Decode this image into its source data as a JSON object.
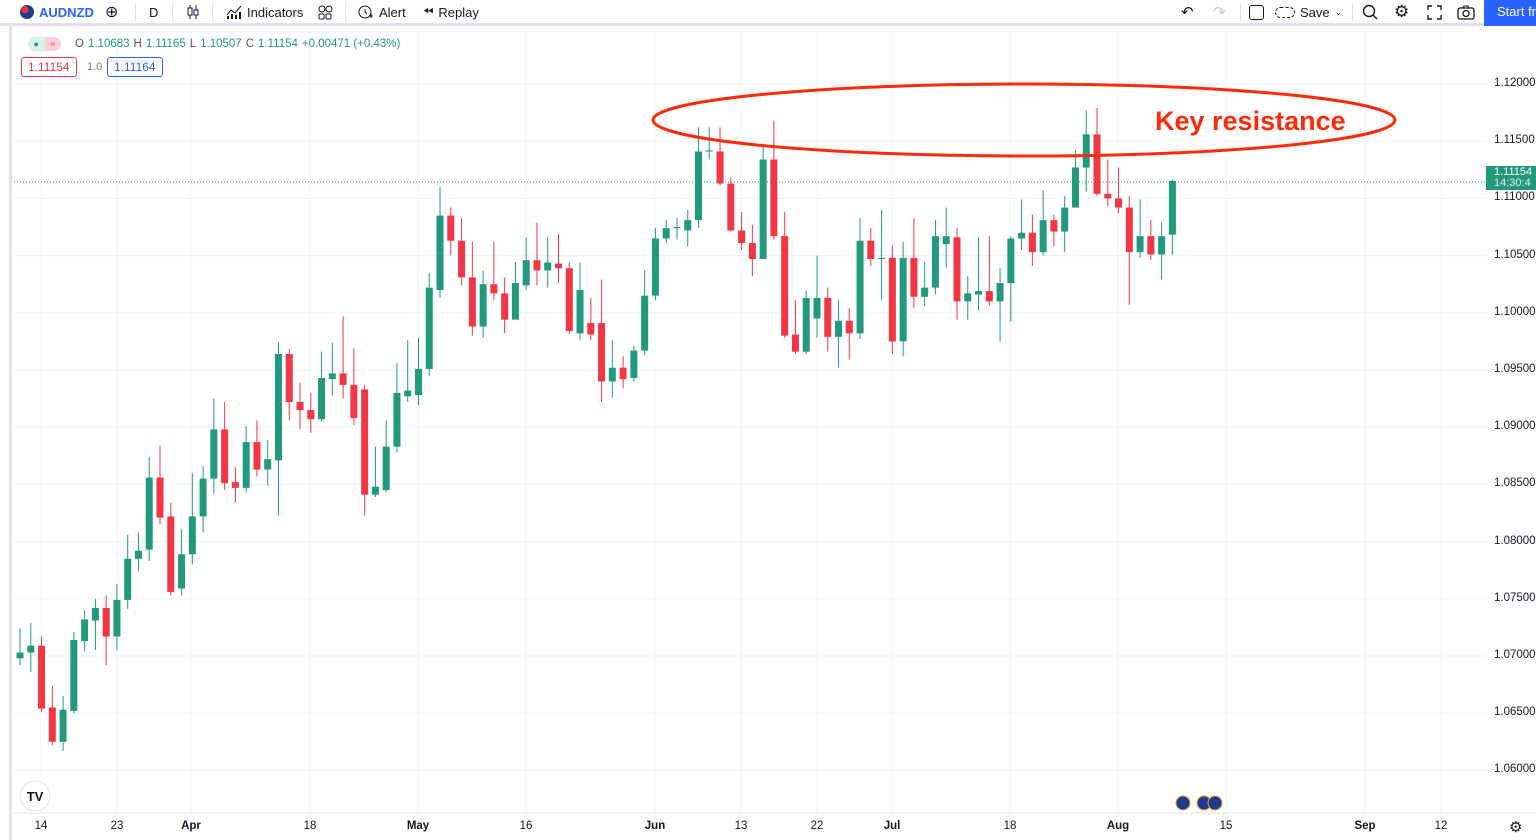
{
  "toolbar": {
    "symbol": "AUDNZD",
    "interval": "D",
    "indicators_label": "Indicators",
    "alert_label": "Alert",
    "replay_label": "Replay",
    "save_label": "Save",
    "start_label": "Start fr"
  },
  "legend": {
    "o_label": "O",
    "o": "1.10683",
    "h_label": "H",
    "h": "1.11165",
    "l_label": "L",
    "l": "1.10507",
    "c_label": "C",
    "c": "1.11154",
    "change": "+0.00471 (+0.43%)",
    "sell_price": "1.11154",
    "spread": "1.0",
    "buy_price": "1.11164"
  },
  "price_tag": {
    "price": "1.11154",
    "countdown": "14:30:4"
  },
  "annotation": {
    "text": "Key resistance",
    "color": "#ff2a0a"
  },
  "colors": {
    "up": "#22997c",
    "down": "#f23645",
    "accent": "#2962ff"
  },
  "chart_data": {
    "type": "candlestick",
    "symbol": "AUDNZD",
    "interval": "D",
    "y_ticks": [
      "1.12000",
      "1.11500",
      "1.11000",
      "1.10500",
      "1.10000",
      "1.09500",
      "1.09000",
      "1.08500",
      "1.08000",
      "1.07500",
      "1.07000",
      "1.06500",
      "1.06000"
    ],
    "ylim": [
      1.0575,
      1.1245
    ],
    "x_ticks": [
      "14",
      "23",
      "Apr",
      "18",
      "May",
      "16",
      "Jun",
      "13",
      "22",
      "Jul",
      "18",
      "Aug",
      "15",
      "Sep",
      "12"
    ],
    "grid": true,
    "ohlc": [
      [
        1.0698,
        1.0724,
        1.0692,
        1.0703
      ],
      [
        1.0703,
        1.0729,
        1.0686,
        1.0709
      ],
      [
        1.0709,
        1.0717,
        1.0651,
        1.0654
      ],
      [
        1.0655,
        1.0674,
        1.0622,
        1.0625
      ],
      [
        1.0625,
        1.0665,
        1.0617,
        1.0653
      ],
      [
        1.0652,
        1.0721,
        1.065,
        1.0714
      ],
      [
        1.0713,
        1.074,
        1.0704,
        1.0732
      ],
      [
        1.0731,
        1.075,
        1.0705,
        1.0742
      ],
      [
        1.0742,
        1.0753,
        1.0692,
        1.0717
      ],
      [
        1.0717,
        1.0763,
        1.0705,
        1.0749
      ],
      [
        1.0749,
        1.0806,
        1.0741,
        1.0785
      ],
      [
        1.0785,
        1.0808,
        1.0774,
        1.0792
      ],
      [
        1.0793,
        1.0874,
        1.0783,
        1.0856
      ],
      [
        1.0856,
        1.0884,
        1.0815,
        1.0821
      ],
      [
        1.0822,
        1.0834,
        1.0753,
        1.0756
      ],
      [
        1.0759,
        1.0811,
        1.0753,
        1.0789
      ],
      [
        1.0789,
        1.086,
        1.078,
        1.0822
      ],
      [
        1.0822,
        1.0866,
        1.0808,
        1.0855
      ],
      [
        1.0855,
        1.0925,
        1.0842,
        1.0898
      ],
      [
        1.0898,
        1.0922,
        1.0845,
        1.0851
      ],
      [
        1.0852,
        1.0865,
        1.0834,
        1.0847
      ],
      [
        1.0847,
        1.0901,
        1.0843,
        1.0887
      ],
      [
        1.0887,
        1.0906,
        1.0857,
        1.0863
      ],
      [
        1.0863,
        1.0889,
        1.0849,
        1.0872
      ],
      [
        1.0871,
        1.0974,
        1.0823,
        1.0964
      ],
      [
        1.0964,
        1.0968,
        1.0906,
        1.0922
      ],
      [
        1.0922,
        1.0939,
        1.0898,
        1.0915
      ],
      [
        1.0915,
        1.093,
        1.0895,
        1.0907
      ],
      [
        1.0907,
        1.0966,
        1.0905,
        1.0943
      ],
      [
        1.0942,
        1.0974,
        1.0928,
        1.0947
      ],
      [
        1.0947,
        1.0997,
        1.0925,
        1.0937
      ],
      [
        1.0937,
        1.0969,
        1.0902,
        1.0908
      ],
      [
        1.0933,
        1.0937,
        1.0823,
        1.0841
      ],
      [
        1.0841,
        1.0883,
        1.0839,
        1.0848
      ],
      [
        1.0845,
        1.0906,
        1.0843,
        1.0883
      ],
      [
        1.0883,
        1.0956,
        1.0878,
        1.093
      ],
      [
        1.0927,
        1.0976,
        1.0922,
        1.0932
      ],
      [
        1.0928,
        1.0978,
        1.0919,
        1.0951
      ],
      [
        1.0951,
        1.1035,
        1.0945,
        1.1022
      ],
      [
        1.102,
        1.111,
        1.1013,
        1.1085
      ],
      [
        1.1085,
        1.1092,
        1.105,
        1.1063
      ],
      [
        1.1063,
        1.1083,
        1.1024,
        1.1031
      ],
      [
        1.1031,
        1.1062,
        1.098,
        1.0988
      ],
      [
        1.0988,
        1.1037,
        1.0978,
        1.1025
      ],
      [
        1.1025,
        1.1062,
        1.1011,
        1.1017
      ],
      [
        1.1017,
        1.1031,
        1.0982,
        1.0994
      ],
      [
        1.0994,
        1.1044,
        1.0994,
        1.1026
      ],
      [
        1.1024,
        1.1066,
        1.102,
        1.1046
      ],
      [
        1.1046,
        1.1079,
        1.1024,
        1.1037
      ],
      [
        1.1037,
        1.1066,
        1.1022,
        1.1044
      ],
      [
        1.1043,
        1.1069,
        1.1026,
        1.1039
      ],
      [
        1.1039,
        1.1044,
        1.0981,
        1.0984
      ],
      [
        1.0982,
        1.1044,
        1.0976,
        1.102
      ],
      [
        1.0991,
        1.1013,
        1.0976,
        1.0981
      ],
      [
        1.0991,
        1.1029,
        1.0922,
        1.094
      ],
      [
        1.094,
        1.0976,
        1.0926,
        1.0952
      ],
      [
        1.0952,
        1.0962,
        1.0934,
        1.0942
      ],
      [
        1.0943,
        1.0971,
        1.094,
        1.0967
      ],
      [
        1.0967,
        1.1037,
        1.0963,
        1.1015
      ],
      [
        1.1015,
        1.1074,
        1.1011,
        1.1065
      ],
      [
        1.1065,
        1.1081,
        1.1061,
        1.1074
      ],
      [
        1.1074,
        1.1083,
        1.1064,
        1.1075
      ],
      [
        1.1072,
        1.109,
        1.1058,
        1.1081
      ],
      [
        1.1081,
        1.1162,
        1.1074,
        1.1141
      ],
      [
        1.1141,
        1.1162,
        1.1134,
        1.1142
      ],
      [
        1.1141,
        1.1162,
        1.1111,
        1.1113
      ],
      [
        1.1113,
        1.1118,
        1.1071,
        1.1072
      ],
      [
        1.1072,
        1.1088,
        1.1055,
        1.1061
      ],
      [
        1.1061,
        1.1077,
        1.1032,
        1.1047
      ],
      [
        1.1047,
        1.1148,
        1.1047,
        1.1134
      ],
      [
        1.1134,
        1.1168,
        1.1064,
        1.1067
      ],
      [
        1.1067,
        1.1088,
        1.0978,
        1.098
      ],
      [
        1.0981,
        1.1011,
        1.0964,
        1.0966
      ],
      [
        1.0966,
        1.102,
        1.0964,
        1.1013
      ],
      [
        1.0995,
        1.105,
        1.0978,
        1.1013
      ],
      [
        1.1013,
        1.1022,
        1.0966,
        1.0979
      ],
      [
        1.0979,
        1.1011,
        1.0952,
        1.0993
      ],
      [
        1.0993,
        1.1004,
        1.0959,
        1.0982
      ],
      [
        1.0982,
        1.1083,
        1.0977,
        1.1063
      ],
      [
        1.1063,
        1.1074,
        1.1041,
        1.1047
      ],
      [
        1.1048,
        1.109,
        1.1011,
        1.1048
      ],
      [
        1.1048,
        1.1059,
        1.0964,
        1.0975
      ],
      [
        1.0975,
        1.1062,
        1.0962,
        1.1048
      ],
      [
        1.1048,
        1.1083,
        1.1004,
        1.1014
      ],
      [
        1.1014,
        1.1044,
        1.1006,
        1.1022
      ],
      [
        1.1022,
        1.1081,
        1.1016,
        1.1067
      ],
      [
        1.106,
        1.1092,
        1.1039,
        1.1067
      ],
      [
        1.1066,
        1.1074,
        1.0994,
        1.101
      ],
      [
        1.101,
        1.1032,
        1.0994,
        1.1017
      ],
      [
        1.1016,
        1.1066,
        1.1002,
        1.1019
      ],
      [
        1.1019,
        1.1067,
        1.1006,
        1.101
      ],
      [
        1.101,
        1.1039,
        1.0975,
        1.1026
      ],
      [
        1.1026,
        1.1067,
        1.0992,
        1.1065
      ],
      [
        1.1065,
        1.1099,
        1.1055,
        1.107
      ],
      [
        1.107,
        1.1086,
        1.1041,
        1.1053
      ],
      [
        1.1053,
        1.1107,
        1.105,
        1.1081
      ],
      [
        1.1081,
        1.1086,
        1.1058,
        1.1071
      ],
      [
        1.1071,
        1.1102,
        1.1053,
        1.1092
      ],
      [
        1.1092,
        1.1142,
        1.1092,
        1.1127
      ],
      [
        1.1127,
        1.1177,
        1.1106,
        1.1156
      ],
      [
        1.1156,
        1.1179,
        1.1102,
        1.1104
      ],
      [
        1.1104,
        1.1134,
        1.1093,
        1.11
      ],
      [
        1.11,
        1.1127,
        1.1087,
        1.1092
      ],
      [
        1.1092,
        1.1102,
        1.1007,
        1.1053
      ],
      [
        1.1053,
        1.1099,
        1.1048,
        1.1067
      ],
      [
        1.1067,
        1.1081,
        1.1046,
        1.1051
      ],
      [
        1.1051,
        1.1079,
        1.1029,
        1.1067
      ],
      [
        1.10683,
        1.11165,
        1.10507,
        1.11154
      ]
    ]
  }
}
